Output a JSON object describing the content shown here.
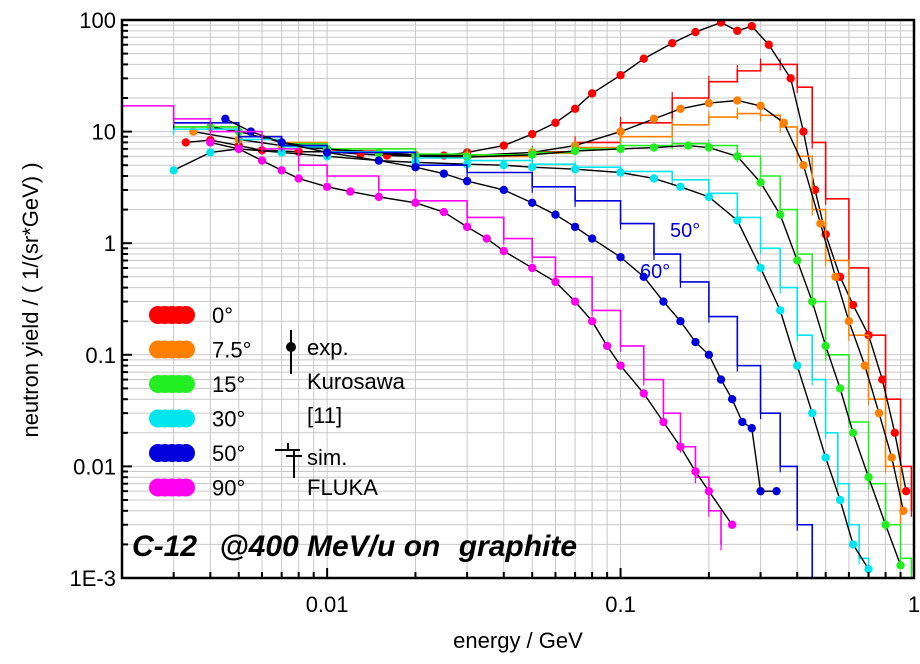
{
  "chart_data": {
    "type": "scatter",
    "title_parts": [
      "C-12",
      "@400 MeV/u on",
      "graphite"
    ],
    "xlabel": "energy / GeV",
    "ylabel": "neutron yield / ( 1/(sr*GeV) )",
    "xscale": "log",
    "yscale": "log",
    "xlim": [
      0.002,
      1
    ],
    "ylim": [
      0.001,
      100
    ],
    "grid": true,
    "x_ticks": [
      {
        "value": 0.01,
        "label": "0.01"
      },
      {
        "value": 0.1,
        "label": "0.1"
      },
      {
        "value": 1,
        "label": "1"
      }
    ],
    "y_ticks": [
      {
        "value": 100,
        "label": "100"
      },
      {
        "value": 10,
        "label": "10"
      },
      {
        "value": 1,
        "label": "1"
      },
      {
        "value": 0.1,
        "label": "0.1"
      },
      {
        "value": 0.01,
        "label": "0.01"
      },
      {
        "value": 0.001,
        "label": "1E-3"
      }
    ],
    "legend_placement": "lower-left",
    "legend_symbols": [
      {
        "label": "exp.",
        "label2": "Kurosawa",
        "label3": "[11]"
      },
      {
        "label": "sim.",
        "label2": "FLUKA"
      }
    ],
    "annotations": [
      "50°",
      "60°"
    ],
    "series": [
      {
        "name": "0°",
        "color": "#ff0000",
        "exp": [
          [
            0.0033,
            8
          ],
          [
            0.004,
            8.4
          ],
          [
            0.005,
            7.5
          ],
          [
            0.006,
            6.8
          ],
          [
            0.008,
            6.6
          ],
          [
            0.01,
            6.6
          ],
          [
            0.013,
            6.3
          ],
          [
            0.016,
            6.1
          ],
          [
            0.02,
            6
          ],
          [
            0.025,
            6.1
          ],
          [
            0.03,
            6.5
          ],
          [
            0.04,
            7.5
          ],
          [
            0.05,
            9.5
          ],
          [
            0.06,
            12
          ],
          [
            0.07,
            16
          ],
          [
            0.08,
            22
          ],
          [
            0.1,
            32
          ],
          [
            0.12,
            45
          ],
          [
            0.15,
            62
          ],
          [
            0.18,
            78
          ],
          [
            0.22,
            95
          ],
          [
            0.25,
            80
          ],
          [
            0.28,
            88
          ],
          [
            0.32,
            60
          ],
          [
            0.38,
            30
          ],
          [
            0.42,
            10
          ],
          [
            0.46,
            3
          ],
          [
            0.5,
            1.2
          ],
          [
            0.56,
            0.5
          ],
          [
            0.62,
            0.28
          ],
          [
            0.7,
            0.15
          ],
          [
            0.78,
            0.06
          ],
          [
            0.86,
            0.02
          ],
          [
            0.94,
            0.006
          ]
        ],
        "sim": [
          [
            0.003,
            12
          ],
          [
            0.004,
            10.5
          ],
          [
            0.005,
            9
          ],
          [
            0.007,
            7.5
          ],
          [
            0.01,
            6.7
          ],
          [
            0.015,
            6.2
          ],
          [
            0.02,
            6
          ],
          [
            0.03,
            6
          ],
          [
            0.05,
            6.6
          ],
          [
            0.07,
            8
          ],
          [
            0.1,
            12
          ],
          [
            0.15,
            20
          ],
          [
            0.2,
            28
          ],
          [
            0.25,
            35
          ],
          [
            0.3,
            40
          ],
          [
            0.35,
            40
          ],
          [
            0.4,
            25
          ],
          [
            0.45,
            8
          ],
          [
            0.5,
            2.5
          ],
          [
            0.6,
            0.6
          ],
          [
            0.7,
            0.15
          ],
          [
            0.8,
            0.04
          ],
          [
            0.9,
            0.01
          ],
          [
            0.98,
            0.004
          ]
        ]
      },
      {
        "name": "7.5°",
        "color": "#ff8000",
        "exp": [
          [
            0.0035,
            10
          ],
          [
            0.005,
            8.5
          ],
          [
            0.007,
            7.5
          ],
          [
            0.01,
            7
          ],
          [
            0.015,
            6.5
          ],
          [
            0.02,
            6.2
          ],
          [
            0.03,
            6.1
          ],
          [
            0.05,
            6.5
          ],
          [
            0.07,
            7.5
          ],
          [
            0.1,
            10
          ],
          [
            0.13,
            13
          ],
          [
            0.16,
            16
          ],
          [
            0.2,
            18
          ],
          [
            0.25,
            19
          ],
          [
            0.3,
            17
          ],
          [
            0.36,
            12
          ],
          [
            0.42,
            5
          ],
          [
            0.48,
            1.5
          ],
          [
            0.54,
            0.5
          ],
          [
            0.6,
            0.2
          ],
          [
            0.68,
            0.08
          ],
          [
            0.76,
            0.03
          ],
          [
            0.84,
            0.012
          ],
          [
            0.92,
            0.004
          ]
        ],
        "sim": [
          [
            0.003,
            11
          ],
          [
            0.005,
            9
          ],
          [
            0.007,
            8
          ],
          [
            0.01,
            7
          ],
          [
            0.02,
            6.2
          ],
          [
            0.03,
            6
          ],
          [
            0.05,
            6.4
          ],
          [
            0.07,
            7.2
          ],
          [
            0.1,
            9
          ],
          [
            0.15,
            11.5
          ],
          [
            0.2,
            13.5
          ],
          [
            0.25,
            14.5
          ],
          [
            0.3,
            14
          ],
          [
            0.35,
            11
          ],
          [
            0.4,
            6
          ],
          [
            0.45,
            2
          ],
          [
            0.5,
            0.7
          ],
          [
            0.6,
            0.15
          ],
          [
            0.7,
            0.04
          ],
          [
            0.8,
            0.01
          ],
          [
            0.9,
            0.003
          ]
        ]
      },
      {
        "name": "15°",
        "color": "#22ee22",
        "exp": [
          [
            0.004,
            11
          ],
          [
            0.005,
            10
          ],
          [
            0.007,
            8
          ],
          [
            0.01,
            7
          ],
          [
            0.015,
            6.4
          ],
          [
            0.02,
            6
          ],
          [
            0.03,
            5.9
          ],
          [
            0.05,
            6.2
          ],
          [
            0.07,
            6.7
          ],
          [
            0.1,
            7
          ],
          [
            0.13,
            7.2
          ],
          [
            0.17,
            7.5
          ],
          [
            0.2,
            7.2
          ],
          [
            0.25,
            6
          ],
          [
            0.3,
            3.5
          ],
          [
            0.35,
            1.8
          ],
          [
            0.4,
            0.7
          ],
          [
            0.45,
            0.3
          ],
          [
            0.5,
            0.12
          ],
          [
            0.56,
            0.05
          ],
          [
            0.62,
            0.02
          ],
          [
            0.7,
            0.008
          ],
          [
            0.8,
            0.003
          ],
          [
            0.9,
            0.0013
          ]
        ],
        "sim": [
          [
            0.003,
            11
          ],
          [
            0.005,
            9
          ],
          [
            0.007,
            7.8
          ],
          [
            0.01,
            7
          ],
          [
            0.02,
            6.3
          ],
          [
            0.03,
            6.2
          ],
          [
            0.05,
            6.5
          ],
          [
            0.07,
            7
          ],
          [
            0.1,
            7.5
          ],
          [
            0.15,
            7.8
          ],
          [
            0.2,
            7.5
          ],
          [
            0.25,
            6
          ],
          [
            0.3,
            4
          ],
          [
            0.35,
            2
          ],
          [
            0.4,
            0.8
          ],
          [
            0.45,
            0.3
          ],
          [
            0.5,
            0.1
          ],
          [
            0.6,
            0.025
          ],
          [
            0.7,
            0.007
          ],
          [
            0.8,
            0.003
          ],
          [
            0.9,
            0.0015
          ],
          [
            0.98,
            0.0011
          ]
        ]
      },
      {
        "name": "30°",
        "color": "#00e5ee",
        "exp": [
          [
            0.003,
            4.5
          ],
          [
            0.004,
            6.5
          ],
          [
            0.005,
            7
          ],
          [
            0.007,
            6.5
          ],
          [
            0.01,
            6
          ],
          [
            0.015,
            5.5
          ],
          [
            0.02,
            5.3
          ],
          [
            0.03,
            5.1
          ],
          [
            0.04,
            5
          ],
          [
            0.05,
            4.8
          ],
          [
            0.07,
            4.6
          ],
          [
            0.1,
            4.3
          ],
          [
            0.13,
            3.8
          ],
          [
            0.16,
            3.2
          ],
          [
            0.2,
            2.6
          ],
          [
            0.25,
            1.6
          ],
          [
            0.3,
            0.6
          ],
          [
            0.35,
            0.25
          ],
          [
            0.4,
            0.08
          ],
          [
            0.45,
            0.03
          ],
          [
            0.5,
            0.012
          ],
          [
            0.56,
            0.005
          ],
          [
            0.62,
            0.002
          ],
          [
            0.7,
            0.0012
          ]
        ],
        "sim": [
          [
            0.003,
            10.5
          ],
          [
            0.005,
            8.5
          ],
          [
            0.007,
            7.3
          ],
          [
            0.01,
            6.6
          ],
          [
            0.02,
            5.8
          ],
          [
            0.03,
            5.5
          ],
          [
            0.05,
            5.1
          ],
          [
            0.07,
            4.8
          ],
          [
            0.1,
            4.4
          ],
          [
            0.15,
            3.7
          ],
          [
            0.2,
            2.8
          ],
          [
            0.25,
            1.7
          ],
          [
            0.3,
            0.9
          ],
          [
            0.35,
            0.4
          ],
          [
            0.4,
            0.15
          ],
          [
            0.45,
            0.06
          ],
          [
            0.5,
            0.02
          ],
          [
            0.55,
            0.007
          ],
          [
            0.6,
            0.003
          ],
          [
            0.65,
            0.0015
          ],
          [
            0.7,
            0.001
          ]
        ]
      },
      {
        "name": "50°",
        "color": "#0000dd",
        "exp": [
          [
            0.0045,
            13
          ],
          [
            0.0055,
            10
          ],
          [
            0.007,
            8
          ],
          [
            0.01,
            6.5
          ],
          [
            0.015,
            5.5
          ],
          [
            0.02,
            4.8
          ],
          [
            0.025,
            4.2
          ],
          [
            0.03,
            3.6
          ],
          [
            0.04,
            3
          ],
          [
            0.05,
            2.3
          ],
          [
            0.06,
            1.8
          ],
          [
            0.07,
            1.4
          ],
          [
            0.08,
            1.1
          ],
          [
            0.1,
            0.75
          ],
          [
            0.12,
            0.5
          ],
          [
            0.14,
            0.3
          ],
          [
            0.16,
            0.2
          ],
          [
            0.18,
            0.13
          ],
          [
            0.2,
            0.1
          ],
          [
            0.22,
            0.06
          ],
          [
            0.24,
            0.04
          ],
          [
            0.26,
            0.025
          ],
          [
            0.28,
            0.022
          ],
          [
            0.3,
            0.006
          ],
          [
            0.34,
            0.006
          ]
        ],
        "sim": [
          [
            0.003,
            12
          ],
          [
            0.005,
            9
          ],
          [
            0.007,
            7.5
          ],
          [
            0.01,
            6.5
          ],
          [
            0.02,
            5
          ],
          [
            0.03,
            4.3
          ],
          [
            0.05,
            3.2
          ],
          [
            0.07,
            2.4
          ],
          [
            0.1,
            1.5
          ],
          [
            0.13,
            0.8
          ],
          [
            0.16,
            0.45
          ],
          [
            0.2,
            0.22
          ],
          [
            0.25,
            0.08
          ],
          [
            0.3,
            0.03
          ],
          [
            0.35,
            0.01
          ],
          [
            0.4,
            0.003
          ],
          [
            0.45,
            0.001
          ]
        ]
      },
      {
        "name": "90°",
        "color": "#ff00ee",
        "exp": [
          [
            0.004,
            8
          ],
          [
            0.005,
            7
          ],
          [
            0.006,
            5.5
          ],
          [
            0.007,
            4.5
          ],
          [
            0.008,
            3.8
          ],
          [
            0.01,
            3.2
          ],
          [
            0.012,
            2.9
          ],
          [
            0.015,
            2.6
          ],
          [
            0.02,
            2.3
          ],
          [
            0.025,
            1.9
          ],
          [
            0.03,
            1.4
          ],
          [
            0.035,
            1.1
          ],
          [
            0.04,
            0.85
          ],
          [
            0.05,
            0.6
          ],
          [
            0.06,
            0.45
          ],
          [
            0.07,
            0.3
          ],
          [
            0.08,
            0.2
          ],
          [
            0.09,
            0.12
          ],
          [
            0.1,
            0.08
          ],
          [
            0.12,
            0.045
          ],
          [
            0.14,
            0.025
          ],
          [
            0.16,
            0.015
          ],
          [
            0.18,
            0.009
          ],
          [
            0.2,
            0.006
          ],
          [
            0.24,
            0.003
          ]
        ],
        "sim": [
          [
            0.002,
            17
          ],
          [
            0.003,
            13
          ],
          [
            0.004,
            10
          ],
          [
            0.006,
            7
          ],
          [
            0.008,
            5
          ],
          [
            0.01,
            4
          ],
          [
            0.015,
            3
          ],
          [
            0.02,
            2.4
          ],
          [
            0.03,
            1.7
          ],
          [
            0.04,
            1.1
          ],
          [
            0.05,
            0.75
          ],
          [
            0.06,
            0.5
          ],
          [
            0.08,
            0.25
          ],
          [
            0.1,
            0.12
          ],
          [
            0.12,
            0.06
          ],
          [
            0.14,
            0.03
          ],
          [
            0.16,
            0.015
          ],
          [
            0.18,
            0.008
          ],
          [
            0.2,
            0.004
          ],
          [
            0.22,
            0.002
          ]
        ]
      }
    ]
  }
}
